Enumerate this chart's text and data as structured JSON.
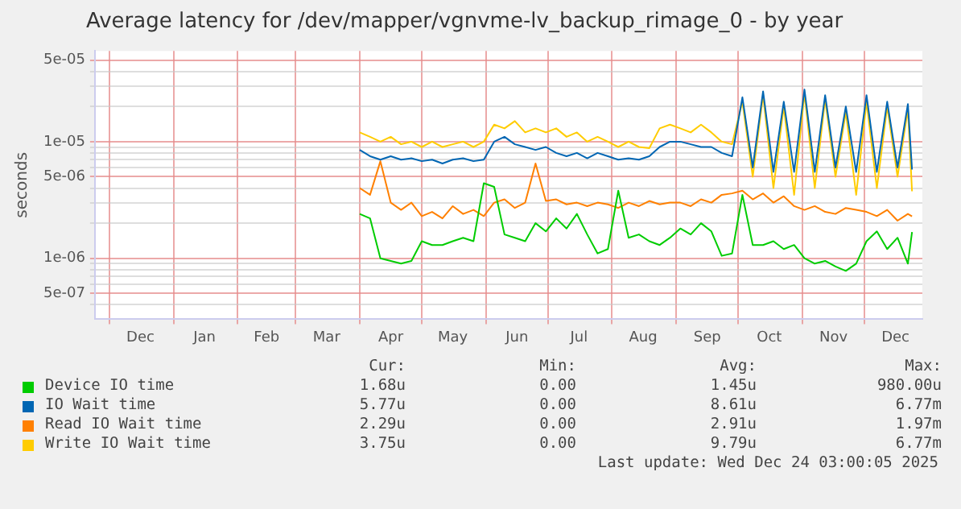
{
  "chart_data": {
    "type": "line",
    "title": "Average latency for /dev/mapper/vgnvme-lv_backup_rimage_0 - by year",
    "ylabel": "seconds",
    "log": "y",
    "grid": true,
    "legend": "bottom",
    "marker": "none",
    "xlim": [
      "2024-11-24",
      "2025-12-29"
    ],
    "xticks": [
      {
        "value": "2024-12-01",
        "label": null
      },
      {
        "value": "2024-12-16",
        "label": "Dec"
      },
      {
        "value": "2025-01-01",
        "label": null
      },
      {
        "value": "2025-01-16",
        "label": "Jan"
      },
      {
        "value": "2025-02-01",
        "label": null
      },
      {
        "value": "2025-02-15",
        "label": "Feb"
      },
      {
        "value": "2025-03-01",
        "label": null
      },
      {
        "value": "2025-03-16",
        "label": "Mar"
      },
      {
        "value": "2025-04-01",
        "label": null
      },
      {
        "value": "2025-04-16",
        "label": "Apr"
      },
      {
        "value": "2025-05-01",
        "label": null
      },
      {
        "value": "2025-05-16",
        "label": "May"
      },
      {
        "value": "2025-06-01",
        "label": null
      },
      {
        "value": "2025-06-16",
        "label": "Jun"
      },
      {
        "value": "2025-07-01",
        "label": null
      },
      {
        "value": "2025-07-16",
        "label": "Jul"
      },
      {
        "value": "2025-08-01",
        "label": null
      },
      {
        "value": "2025-08-16",
        "label": "Aug"
      },
      {
        "value": "2025-09-01",
        "label": null
      },
      {
        "value": "2025-09-16",
        "label": "Sep"
      },
      {
        "value": "2025-10-01",
        "label": null
      },
      {
        "value": "2025-10-16",
        "label": "Oct"
      },
      {
        "value": "2025-11-01",
        "label": null
      },
      {
        "value": "2025-11-16",
        "label": "Nov"
      },
      {
        "value": "2025-12-01",
        "label": null
      },
      {
        "value": "2025-12-16",
        "label": "Dec"
      }
    ],
    "ylim": [
      3e-07,
      6e-05
    ],
    "yticks": [
      {
        "value": 4e-07,
        "label": null
      },
      {
        "value": 5e-07,
        "label": "5e-07"
      },
      {
        "value": 6e-07,
        "label": null
      },
      {
        "value": 7e-07,
        "label": null
      },
      {
        "value": 8e-07,
        "label": null
      },
      {
        "value": 9e-07,
        "label": null
      },
      {
        "value": 1e-06,
        "label": "1e-06"
      },
      {
        "value": 2e-06,
        "label": null
      },
      {
        "value": 3e-06,
        "label": null
      },
      {
        "value": 4e-06,
        "label": null
      },
      {
        "value": 5e-06,
        "label": "5e-06"
      },
      {
        "value": 6e-06,
        "label": null
      },
      {
        "value": 7e-06,
        "label": null
      },
      {
        "value": 8e-06,
        "label": null
      },
      {
        "value": 9e-06,
        "label": null
      },
      {
        "value": 1e-05,
        "label": "1e-05"
      },
      {
        "value": 2e-05,
        "label": null
      },
      {
        "value": 3e-05,
        "label": null
      },
      {
        "value": 4e-05,
        "label": null
      },
      {
        "value": 5e-05,
        "label": "5e-05"
      }
    ],
    "x": [
      "2025-04-01",
      "2025-04-06",
      "2025-04-11",
      "2025-04-16",
      "2025-04-21",
      "2025-04-26",
      "2025-05-01",
      "2025-05-06",
      "2025-05-11",
      "2025-05-16",
      "2025-05-21",
      "2025-05-26",
      "2025-05-31",
      "2025-06-05",
      "2025-06-10",
      "2025-06-15",
      "2025-06-20",
      "2025-06-25",
      "2025-06-30",
      "2025-07-05",
      "2025-07-10",
      "2025-07-15",
      "2025-07-20",
      "2025-07-25",
      "2025-07-30",
      "2025-08-04",
      "2025-08-09",
      "2025-08-14",
      "2025-08-19",
      "2025-08-24",
      "2025-08-29",
      "2025-09-03",
      "2025-09-08",
      "2025-09-13",
      "2025-09-18",
      "2025-09-23",
      "2025-09-28",
      "2025-10-03",
      "2025-10-08",
      "2025-10-13",
      "2025-10-18",
      "2025-10-23",
      "2025-10-28",
      "2025-11-02",
      "2025-11-07",
      "2025-11-12",
      "2025-11-17",
      "2025-11-22",
      "2025-11-27",
      "2025-12-02",
      "2025-12-07",
      "2025-12-12",
      "2025-12-17",
      "2025-12-22",
      "2025-12-24"
    ],
    "series": [
      {
        "name": "Device IO time",
        "color": "#00cc00",
        "values": [
          2.4e-06,
          2.2e-06,
          1e-06,
          9.5e-07,
          9e-07,
          9.5e-07,
          1.4e-06,
          1.3e-06,
          1.3e-06,
          1.4e-06,
          1.5e-06,
          1.4e-06,
          4.4e-06,
          4.1e-06,
          1.6e-06,
          1.5e-06,
          1.4e-06,
          2e-06,
          1.7e-06,
          2.2e-06,
          1.8e-06,
          2.4e-06,
          1.6e-06,
          1.1e-06,
          1.2e-06,
          3.8e-06,
          1.5e-06,
          1.6e-06,
          1.4e-06,
          1.3e-06,
          1.5e-06,
          1.8e-06,
          1.6e-06,
          2e-06,
          1.7e-06,
          1.05e-06,
          1.1e-06,
          3.5e-06,
          1.3e-06,
          1.3e-06,
          1.4e-06,
          1.2e-06,
          1.3e-06,
          1e-06,
          9e-07,
          9.5e-07,
          8.5e-07,
          7.8e-07,
          9e-07,
          1.4e-06,
          1.7e-06,
          1.2e-06,
          1.5e-06,
          9e-07,
          1.68e-06
        ]
      },
      {
        "name": "IO Wait time",
        "color": "#0066b3",
        "values": [
          8.5e-06,
          7.5e-06,
          7e-06,
          7.5e-06,
          7e-06,
          7.2e-06,
          6.8e-06,
          7e-06,
          6.5e-06,
          7e-06,
          7.2e-06,
          6.8e-06,
          7e-06,
          1e-05,
          1.1e-05,
          9.5e-06,
          9e-06,
          8.5e-06,
          9e-06,
          8e-06,
          7.5e-06,
          8e-06,
          7.2e-06,
          8e-06,
          7.5e-06,
          7e-06,
          7.2e-06,
          7e-06,
          7.5e-06,
          9e-06,
          1e-05,
          1e-05,
          9.5e-06,
          9e-06,
          9e-06,
          8e-06,
          7.5e-06,
          2.4e-05,
          6e-06,
          2.7e-05,
          5.5e-06,
          2.2e-05,
          5.5e-06,
          2.8e-05,
          5.5e-06,
          2.5e-05,
          6e-06,
          2e-05,
          5.5e-06,
          2.5e-05,
          5.5e-06,
          2.2e-05,
          6e-06,
          2.1e-05,
          5.77e-06
        ]
      },
      {
        "name": "Read IO Wait time",
        "color": "#ff8000",
        "values": [
          4e-06,
          3.5e-06,
          6.8e-06,
          3e-06,
          2.6e-06,
          3e-06,
          2.3e-06,
          2.5e-06,
          2.2e-06,
          2.8e-06,
          2.4e-06,
          2.6e-06,
          2.3e-06,
          3e-06,
          3.2e-06,
          2.7e-06,
          3e-06,
          6.5e-06,
          3.1e-06,
          3.2e-06,
          2.9e-06,
          3e-06,
          2.8e-06,
          3e-06,
          2.9e-06,
          2.7e-06,
          3e-06,
          2.8e-06,
          3.1e-06,
          2.9e-06,
          3e-06,
          3e-06,
          2.8e-06,
          3.2e-06,
          3e-06,
          3.5e-06,
          3.6e-06,
          3.8e-06,
          3.2e-06,
          3.6e-06,
          3e-06,
          3.4e-06,
          2.8e-06,
          2.6e-06,
          2.8e-06,
          2.5e-06,
          2.4e-06,
          2.7e-06,
          2.6e-06,
          2.5e-06,
          2.3e-06,
          2.6e-06,
          2.1e-06,
          2.4e-06,
          2.29e-06
        ]
      },
      {
        "name": "Write IO Wait time",
        "color": "#ffcc00",
        "values": [
          1.2e-05,
          1.1e-05,
          1e-05,
          1.1e-05,
          9.5e-06,
          1e-05,
          9e-06,
          1e-05,
          9e-06,
          9.5e-06,
          1e-05,
          9e-06,
          1e-05,
          1.4e-05,
          1.3e-05,
          1.5e-05,
          1.2e-05,
          1.3e-05,
          1.2e-05,
          1.3e-05,
          1.1e-05,
          1.2e-05,
          1e-05,
          1.1e-05,
          1e-05,
          9e-06,
          1e-05,
          9e-06,
          8.8e-06,
          1.3e-05,
          1.4e-05,
          1.3e-05,
          1.2e-05,
          1.4e-05,
          1.2e-05,
          1e-05,
          9.5e-06,
          2.2e-05,
          5e-06,
          2.5e-05,
          4e-06,
          2e-05,
          3.5e-06,
          2.6e-05,
          4e-06,
          2.3e-05,
          5e-06,
          1.8e-05,
          3.5e-06,
          2.2e-05,
          4e-06,
          2e-05,
          5e-06,
          1.9e-05,
          3.75e-06
        ]
      }
    ],
    "annotations": [
      "Cur:",
      "Min:",
      "Avg:",
      "Max:",
      "1.68u",
      "0.00",
      "1.45u",
      "980.00u",
      "5.77u",
      "0.00",
      "8.61u",
      "6.77m",
      "2.29u",
      "0.00",
      "2.91u",
      "1.97m",
      "3.75u",
      "0.00",
      "9.79u",
      "6.77m",
      "Last update: Wed Dec 24 03:00:05 2025"
    ]
  }
}
